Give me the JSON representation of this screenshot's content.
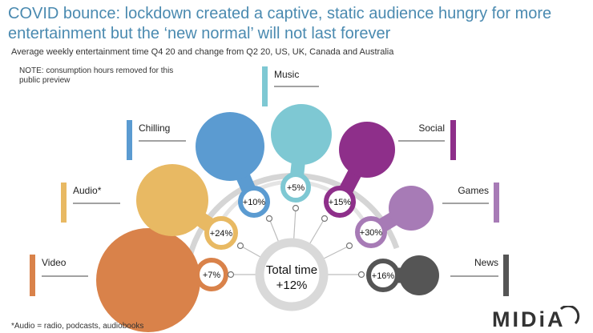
{
  "header": {
    "title": "COVID bounce: lockdown created a captive, static audience hungry for more entertainment but the ‘new normal’ will not last forever",
    "subtitle": "Average weekly entertainment time Q4 20 and change from Q2 20, US, UK, Canada and Australia",
    "note": "NOTE: consumption hours removed for this public preview"
  },
  "footnote": "*Audio = radio, podcasts, audiobooks",
  "logo": {
    "text": "MIDiA",
    "color": "#333333"
  },
  "chart_data": {
    "type": "bubble",
    "title": "",
    "center": {
      "label": "Total time",
      "value": "+12%"
    },
    "categories": [
      {
        "name": "Video",
        "change": "+7%",
        "color": "#d9824a"
      },
      {
        "name": "Audio*",
        "change": "+24%",
        "color": "#e8b963"
      },
      {
        "name": "Chilling",
        "change": "+10%",
        "color": "#5b9bd1"
      },
      {
        "name": "Music",
        "change": "+5%",
        "color": "#7ec8d3"
      },
      {
        "name": "Social",
        "change": "+15%",
        "color": "#8e2f8a"
      },
      {
        "name": "Games",
        "change": "+30%",
        "color": "#a77bb6"
      },
      {
        "name": "News",
        "change": "+16%",
        "color": "#555555"
      }
    ]
  }
}
